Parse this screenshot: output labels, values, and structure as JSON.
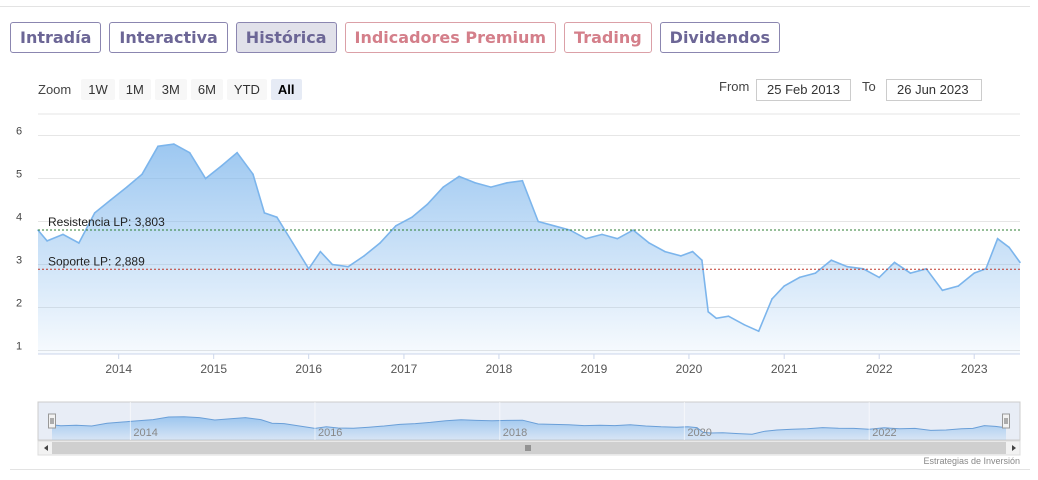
{
  "tabs": [
    {
      "label": "Intradía",
      "style": "normal"
    },
    {
      "label": "Interactiva",
      "style": "normal"
    },
    {
      "label": "Histórica",
      "style": "active"
    },
    {
      "label": "Indicadores Premium",
      "style": "premium"
    },
    {
      "label": "Trading",
      "style": "premium"
    },
    {
      "label": "Dividendos",
      "style": "normal"
    }
  ],
  "zoom": {
    "label": "Zoom",
    "buttons": [
      "1W",
      "1M",
      "3M",
      "6M",
      "YTD",
      "All"
    ],
    "selected": "All"
  },
  "range": {
    "from_label": "From",
    "from_value": "25 Feb 2013",
    "to_label": "To",
    "to_value": "26 Jun 2023"
  },
  "colors": {
    "line": "#7cb5ec",
    "area_top": "#7cb5ec",
    "support_line": "#c0392b",
    "resistance_line": "#2e7d32",
    "tab_text": "#6c6696",
    "premium_text": "#d47f8a"
  },
  "credit": "Estrategias de Inversión",
  "chart_data": {
    "type": "area",
    "x_start": "2013-02-25",
    "x_end": "2023-06-26",
    "ylim": [
      1,
      6
    ],
    "yticks": [
      "1",
      "2",
      "3",
      "4",
      "5",
      "6"
    ],
    "xticks": [
      "2014",
      "2015",
      "2016",
      "2017",
      "2018",
      "2019",
      "2020",
      "2021",
      "2022",
      "2023"
    ],
    "grid": true,
    "series": [
      {
        "x": [
          "2013-02-25",
          "2013-04-01",
          "2013-06-01",
          "2013-08-01",
          "2013-10-01",
          "2013-12-01",
          "2014-02-01",
          "2014-04-01",
          "2014-06-01",
          "2014-08-01",
          "2014-10-01",
          "2014-12-01",
          "2015-02-01",
          "2015-04-01",
          "2015-06-01",
          "2015-07-15",
          "2015-09-01",
          "2015-11-01",
          "2016-01-01",
          "2016-02-15",
          "2016-04-01",
          "2016-06-01",
          "2016-08-01",
          "2016-10-01",
          "2016-12-01",
          "2017-02-01",
          "2017-04-01",
          "2017-06-01",
          "2017-08-01",
          "2017-10-01",
          "2017-12-01",
          "2018-02-01",
          "2018-04-01",
          "2018-06-01",
          "2018-08-01",
          "2018-10-01",
          "2018-12-01",
          "2019-02-01",
          "2019-04-01",
          "2019-06-01",
          "2019-08-01",
          "2019-10-01",
          "2019-12-01",
          "2020-01-15",
          "2020-02-20",
          "2020-03-15",
          "2020-04-15",
          "2020-06-01",
          "2020-08-01",
          "2020-09-25",
          "2020-11-15",
          "2021-01-01",
          "2021-03-01",
          "2021-05-01",
          "2021-07-01",
          "2021-09-01",
          "2021-11-01",
          "2022-01-01",
          "2022-03-01",
          "2022-05-01",
          "2022-07-01",
          "2022-09-01",
          "2022-11-01",
          "2023-01-01",
          "2023-02-15",
          "2023-04-01",
          "2023-05-15",
          "2023-06-26"
        ],
        "values": [
          3.8,
          3.55,
          3.7,
          3.5,
          4.2,
          4.5,
          4.8,
          5.1,
          5.75,
          5.8,
          5.6,
          5.0,
          5.3,
          5.6,
          5.1,
          4.2,
          4.1,
          3.5,
          2.9,
          3.3,
          3.0,
          2.95,
          3.2,
          3.5,
          3.9,
          4.1,
          4.4,
          4.8,
          5.05,
          4.9,
          4.8,
          4.9,
          4.95,
          4.0,
          3.9,
          3.8,
          3.6,
          3.7,
          3.6,
          3.8,
          3.5,
          3.3,
          3.2,
          3.3,
          3.1,
          1.9,
          1.75,
          1.8,
          1.6,
          1.45,
          2.2,
          2.5,
          2.7,
          2.8,
          3.1,
          2.95,
          2.9,
          2.7,
          3.05,
          2.8,
          2.9,
          2.4,
          2.5,
          2.8,
          2.9,
          3.6,
          3.4,
          3.05
        ]
      }
    ],
    "annotations": [
      {
        "label": "Resistencia LP: 3,803",
        "value": 3.803
      },
      {
        "label": "Soporte LP: 2,889",
        "value": 2.889
      }
    ],
    "navigator_ticks": [
      "2014",
      "2016",
      "2018",
      "2020",
      "2022"
    ]
  }
}
